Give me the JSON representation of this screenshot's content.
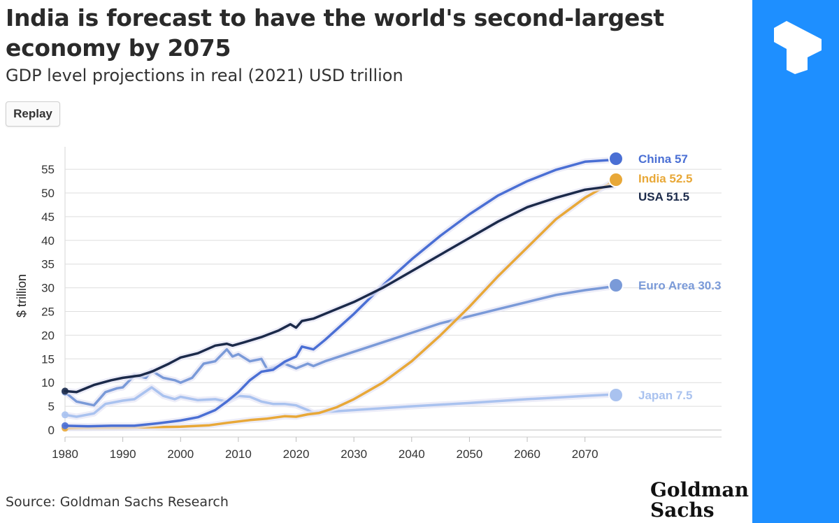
{
  "header": {
    "title": "India is forecast to have the world's second-largest economy by 2075",
    "subtitle": "GDP level projections in real (2021) USD trillion",
    "replay_label": "Replay"
  },
  "footer": {
    "source": "Source: Goldman Sachs Research",
    "logo_line1": "Goldman",
    "logo_line2": "Sachs"
  },
  "brand": {
    "icon": "t-logo-icon",
    "color": "#1e8fff"
  },
  "chart_data": {
    "type": "line",
    "title": "India is forecast to have the world's second-largest economy by 2075",
    "subtitle": "GDP level projections in real (2021) USD trillion",
    "xlabel": "",
    "ylabel": "$ trillion",
    "xlim": [
      1980,
      2075
    ],
    "ylim": [
      0,
      57
    ],
    "xticks": [
      1980,
      1990,
      2000,
      2010,
      2020,
      2030,
      2040,
      2050,
      2060,
      2070
    ],
    "yticks": [
      0,
      5,
      10,
      15,
      20,
      25,
      30,
      35,
      40,
      45,
      50,
      55
    ],
    "grid": true,
    "legend": "end-of-line labels",
    "series": [
      {
        "name": "China",
        "label": "China 57",
        "color": "#4a6fd4",
        "end_value": 57,
        "points": [
          [
            1980,
            0.9
          ],
          [
            1984,
            0.8
          ],
          [
            1988,
            0.9
          ],
          [
            1992,
            0.9
          ],
          [
            1996,
            1.4
          ],
          [
            2000,
            2.0
          ],
          [
            2003,
            2.7
          ],
          [
            2006,
            4.2
          ],
          [
            2008,
            6.0
          ],
          [
            2010,
            8.0
          ],
          [
            2012,
            10.5
          ],
          [
            2014,
            12.3
          ],
          [
            2016,
            12.7
          ],
          [
            2018,
            14.4
          ],
          [
            2020,
            15.5
          ],
          [
            2021,
            17.6
          ],
          [
            2022,
            17.3
          ],
          [
            2023,
            17.0
          ],
          [
            2025,
            19.0
          ],
          [
            2030,
            24.5
          ],
          [
            2035,
            30.5
          ],
          [
            2040,
            36.0
          ],
          [
            2045,
            41.0
          ],
          [
            2050,
            45.5
          ],
          [
            2055,
            49.5
          ],
          [
            2060,
            52.5
          ],
          [
            2065,
            54.9
          ],
          [
            2070,
            56.6
          ],
          [
            2075,
            57.0
          ]
        ]
      },
      {
        "name": "India",
        "label": "India 52.5",
        "color": "#e8a838",
        "end_value": 52.5,
        "points": [
          [
            1980,
            0.4
          ],
          [
            1990,
            0.5
          ],
          [
            2000,
            0.7
          ],
          [
            2005,
            1.0
          ],
          [
            2008,
            1.5
          ],
          [
            2010,
            1.8
          ],
          [
            2012,
            2.1
          ],
          [
            2015,
            2.4
          ],
          [
            2018,
            2.9
          ],
          [
            2020,
            2.8
          ],
          [
            2022,
            3.3
          ],
          [
            2024,
            3.6
          ],
          [
            2027,
            4.8
          ],
          [
            2030,
            6.5
          ],
          [
            2035,
            10.0
          ],
          [
            2040,
            14.5
          ],
          [
            2045,
            20.0
          ],
          [
            2050,
            26.0
          ],
          [
            2055,
            32.5
          ],
          [
            2060,
            38.5
          ],
          [
            2065,
            44.5
          ],
          [
            2070,
            49.0
          ],
          [
            2075,
            52.5
          ]
        ]
      },
      {
        "name": "USA",
        "label": "USA 51.5",
        "color": "#1b2a4a",
        "end_value": 51.5,
        "points": [
          [
            1980,
            8.2
          ],
          [
            1982,
            8.0
          ],
          [
            1985,
            9.5
          ],
          [
            1988,
            10.5
          ],
          [
            1990,
            11.0
          ],
          [
            1993,
            11.5
          ],
          [
            1995,
            12.3
          ],
          [
            1998,
            14.0
          ],
          [
            2000,
            15.3
          ],
          [
            2003,
            16.2
          ],
          [
            2006,
            17.8
          ],
          [
            2008,
            18.2
          ],
          [
            2009,
            17.8
          ],
          [
            2011,
            18.5
          ],
          [
            2014,
            19.6
          ],
          [
            2017,
            21.0
          ],
          [
            2019,
            22.3
          ],
          [
            2020,
            21.6
          ],
          [
            2021,
            23.0
          ],
          [
            2023,
            23.5
          ],
          [
            2025,
            24.5
          ],
          [
            2030,
            27.0
          ],
          [
            2035,
            30.0
          ],
          [
            2040,
            33.5
          ],
          [
            2045,
            37.0
          ],
          [
            2050,
            40.5
          ],
          [
            2055,
            44.0
          ],
          [
            2060,
            47.0
          ],
          [
            2065,
            49.0
          ],
          [
            2070,
            50.7
          ],
          [
            2075,
            51.5
          ]
        ]
      },
      {
        "name": "Euro Area",
        "label": "Euro Area 30.3",
        "color": "#7a9ad8",
        "end_value": 30.3,
        "points": [
          [
            1980,
            8.0
          ],
          [
            1982,
            6.0
          ],
          [
            1985,
            5.2
          ],
          [
            1987,
            8.0
          ],
          [
            1989,
            8.8
          ],
          [
            1990,
            9.0
          ],
          [
            1992,
            11.5
          ],
          [
            1994,
            11.0
          ],
          [
            1995,
            12.5
          ],
          [
            1997,
            11.0
          ],
          [
            1999,
            10.5
          ],
          [
            2000,
            10.0
          ],
          [
            2002,
            11.0
          ],
          [
            2004,
            14.0
          ],
          [
            2006,
            14.5
          ],
          [
            2008,
            17.0
          ],
          [
            2009,
            15.5
          ],
          [
            2010,
            16.0
          ],
          [
            2012,
            14.5
          ],
          [
            2014,
            15.0
          ],
          [
            2015,
            12.8
          ],
          [
            2017,
            13.5
          ],
          [
            2018,
            14.0
          ],
          [
            2020,
            13.0
          ],
          [
            2022,
            14.0
          ],
          [
            2023,
            13.5
          ],
          [
            2025,
            14.5
          ],
          [
            2030,
            16.5
          ],
          [
            2035,
            18.5
          ],
          [
            2040,
            20.5
          ],
          [
            2045,
            22.5
          ],
          [
            2050,
            24.0
          ],
          [
            2055,
            25.5
          ],
          [
            2060,
            27.0
          ],
          [
            2065,
            28.5
          ],
          [
            2070,
            29.5
          ],
          [
            2075,
            30.3
          ]
        ]
      },
      {
        "name": "Japan",
        "label": "Japan 7.5",
        "color": "#a9c2ef",
        "end_value": 7.5,
        "points": [
          [
            1980,
            3.2
          ],
          [
            1982,
            2.8
          ],
          [
            1985,
            3.5
          ],
          [
            1987,
            5.5
          ],
          [
            1990,
            6.2
          ],
          [
            1992,
            6.5
          ],
          [
            1995,
            9.0
          ],
          [
            1997,
            7.2
          ],
          [
            1999,
            6.5
          ],
          [
            2000,
            7.0
          ],
          [
            2003,
            6.3
          ],
          [
            2006,
            6.5
          ],
          [
            2008,
            6.0
          ],
          [
            2010,
            7.2
          ],
          [
            2012,
            7.0
          ],
          [
            2014,
            6.0
          ],
          [
            2016,
            5.5
          ],
          [
            2018,
            5.5
          ],
          [
            2020,
            5.2
          ],
          [
            2022,
            4.2
          ],
          [
            2023,
            3.6
          ],
          [
            2025,
            3.8
          ],
          [
            2030,
            4.2
          ],
          [
            2040,
            5.0
          ],
          [
            2050,
            5.7
          ],
          [
            2060,
            6.5
          ],
          [
            2070,
            7.2
          ],
          [
            2075,
            7.5
          ]
        ]
      }
    ]
  }
}
